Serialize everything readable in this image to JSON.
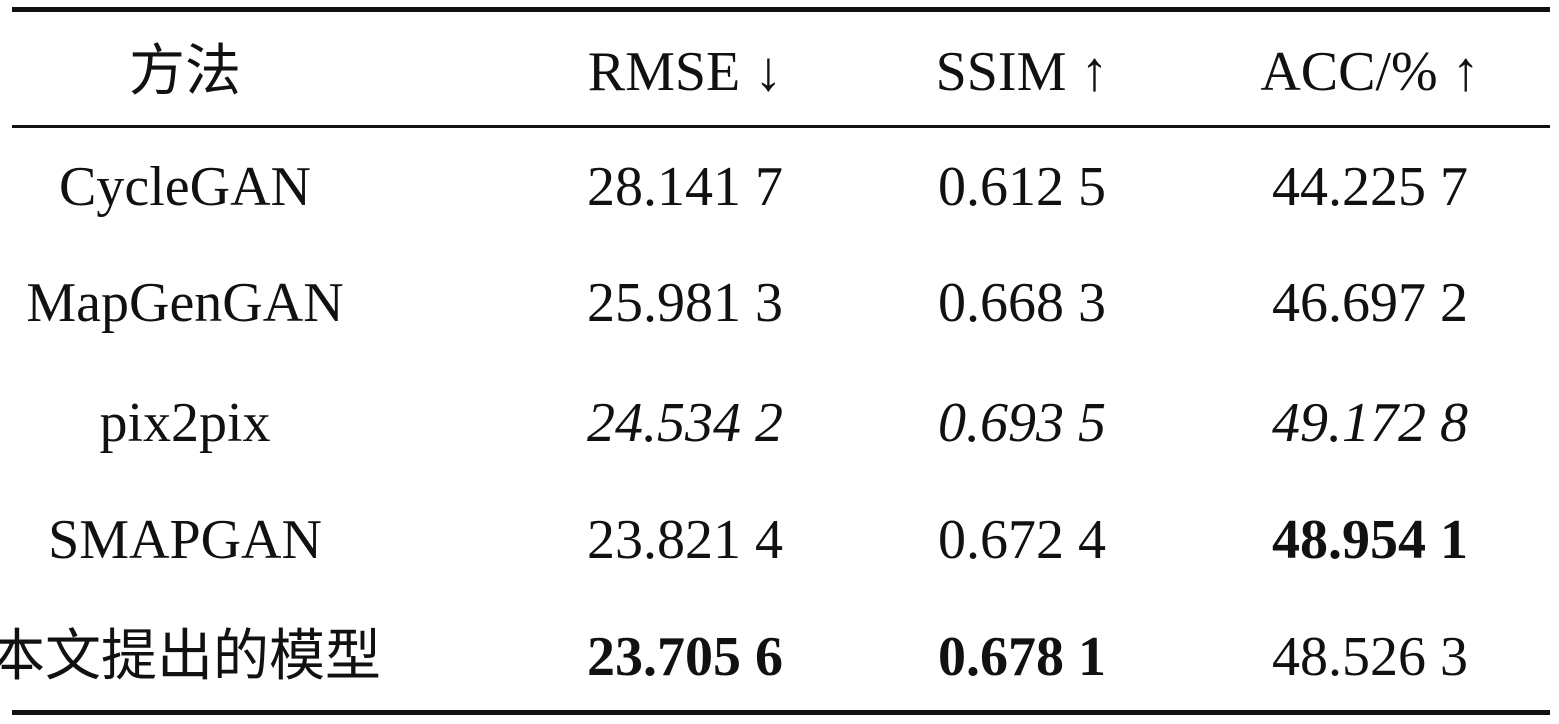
{
  "table": {
    "header": [
      "方法",
      "RMSE ↓",
      "SSIM ↑",
      "ACC/% ↑"
    ],
    "rows": [
      [
        "CycleGAN",
        "28.141 7",
        "0.612 5",
        "44.225 7"
      ],
      [
        "MapGenGAN",
        "25.981 3",
        "0.668 3",
        "46.697 2"
      ],
      [
        "pix2pix",
        "24.534 2",
        "0.693 5",
        "49.172 8"
      ],
      [
        "SMAPGAN",
        "23.821 4",
        "0.672 4",
        "48.954 1"
      ],
      [
        "本文提出的模型",
        "23.705 6",
        "0.678 1",
        "48.526 3"
      ]
    ]
  }
}
